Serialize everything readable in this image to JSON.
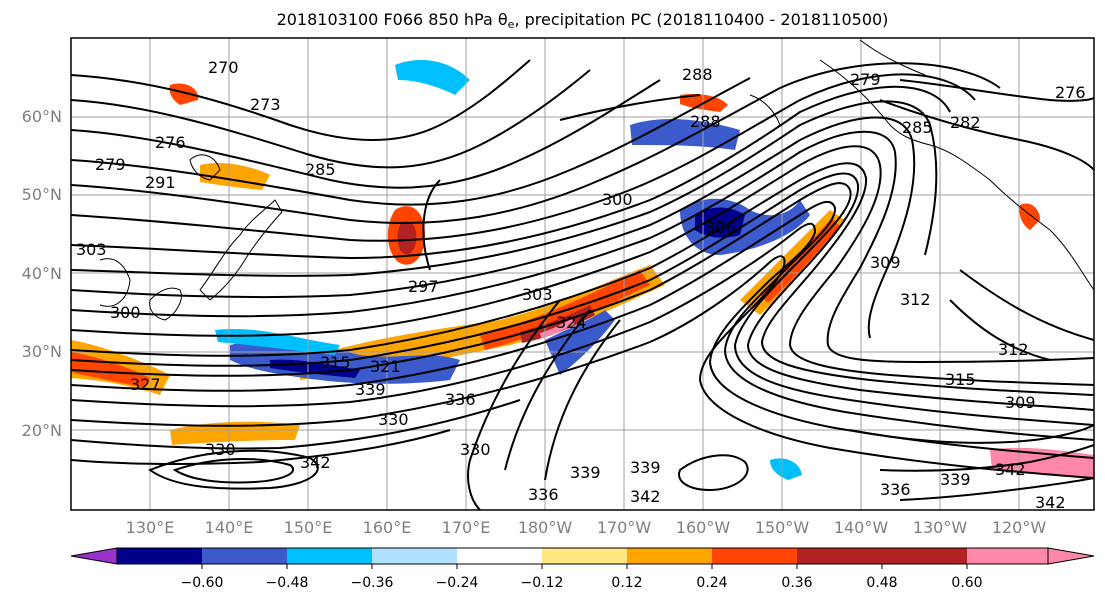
{
  "title": {
    "prefix": "2018103100 F066 850 hPa θ",
    "sub": "e",
    "suffix": ", precipitation PC (2018110400 - 2018110500)"
  },
  "lat_labels": [
    "60°N",
    "50°N",
    "40°N",
    "30°N",
    "20°N"
  ],
  "lon_labels": [
    "130°E",
    "140°E",
    "150°E",
    "160°E",
    "170°E",
    "180°W",
    "170°W",
    "160°W",
    "150°W",
    "140°W",
    "130°W",
    "120°W"
  ],
  "colorbar": {
    "colors": [
      "#9932cc",
      "#00008b",
      "#3b5bcc",
      "#00bfff",
      "#b0e2ff",
      "#ffffff",
      "#ffe680",
      "#ffa500",
      "#ff4500",
      "#b22222",
      "#ff88aa"
    ],
    "tick_labels": [
      "−0.60",
      "−0.48",
      "−0.36",
      "−0.24",
      "−0.12",
      "0.12",
      "0.24",
      "0.36",
      "0.48",
      "0.60"
    ]
  },
  "contour_labels": [
    "270",
    "273",
    "276",
    "279",
    "291",
    "285",
    "300",
    "303",
    "300",
    "297",
    "303",
    "324",
    "306",
    "309",
    "312",
    "315",
    "321",
    "327",
    "339",
    "336",
    "330",
    "330",
    "342",
    "339",
    "342",
    "336",
    "288",
    "288",
    "285",
    "282",
    "276",
    "279",
    "312",
    "315",
    "309",
    "336",
    "339",
    "342",
    "342",
    "339",
    "330"
  ]
}
